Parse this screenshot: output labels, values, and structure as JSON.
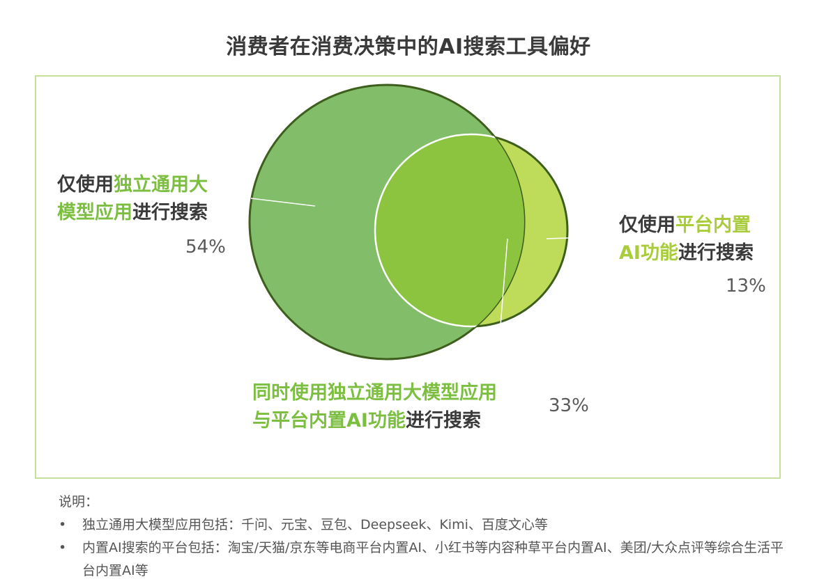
{
  "title": "消费者在消费决策中的AI搜索工具偏好",
  "chart_data": {
    "type": "venn",
    "sets": [
      {
        "label_prefix": "仅使用",
        "label_highlight_1": "独立通用大",
        "label_highlight_2": "模型应用",
        "label_suffix": "进行搜索",
        "value": 54,
        "value_label": "54%",
        "color": "#82bd6a"
      },
      {
        "label_prefix": "仅使用",
        "label_highlight_1": "平台内置",
        "label_highlight_2": "AI功能",
        "label_suffix": "进行搜索",
        "value": 13,
        "value_label": "13%",
        "color": "#bfdb5a"
      }
    ],
    "overlap": {
      "label_highlight_1": "同时使用独立通用大模型应用",
      "label_highlight_2": "与平台内置AI功能",
      "label_suffix": "进行搜索",
      "value": 33,
      "value_label": "33%",
      "color": "#8cc43f"
    }
  },
  "notes": {
    "heading": "说明：",
    "bullet": "•",
    "items": [
      "独立通用大模型应用包括：千问、元宝、豆包、Deepseek、Kimi、百度文心等",
      "内置AI搜索的平台包括：淘宝/天猫/京东等电商平台内置AI、小红书等内容种草平台内置AI、美团/大众点评等综合生活平台内置AI等"
    ]
  },
  "colors": {
    "frame_border": "#c5e09b",
    "big_circle_stroke": "#3d5e1c",
    "leader_line": "#ffffff"
  }
}
